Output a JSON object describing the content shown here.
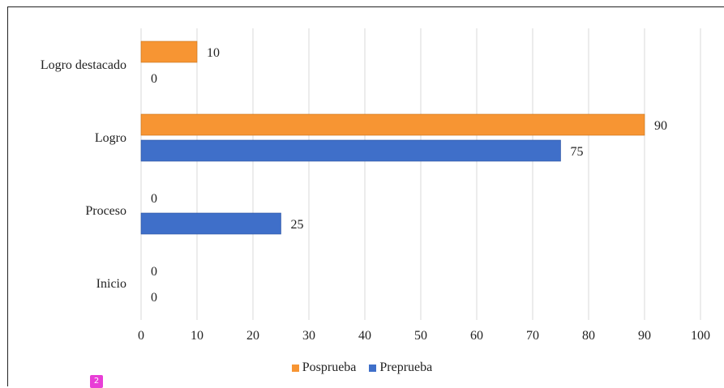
{
  "chart_data": {
    "type": "bar",
    "orientation": "horizontal",
    "categories": [
      "Logro destacado",
      "Logro",
      "Proceso",
      "Inicio"
    ],
    "series": [
      {
        "name": "Posprueba",
        "values": [
          10,
          90,
          0,
          0
        ],
        "color": "#F79533"
      },
      {
        "name": "Preprueba",
        "values": [
          0,
          75,
          25,
          0
        ],
        "color": "#3F6FC9"
      }
    ],
    "xlim": [
      0,
      100
    ],
    "xticks": [
      0,
      10,
      20,
      30,
      40,
      50,
      60,
      70,
      80,
      90,
      100
    ],
    "grid": true,
    "legend": "bottom",
    "data_labels": true
  },
  "page_badge": "2"
}
